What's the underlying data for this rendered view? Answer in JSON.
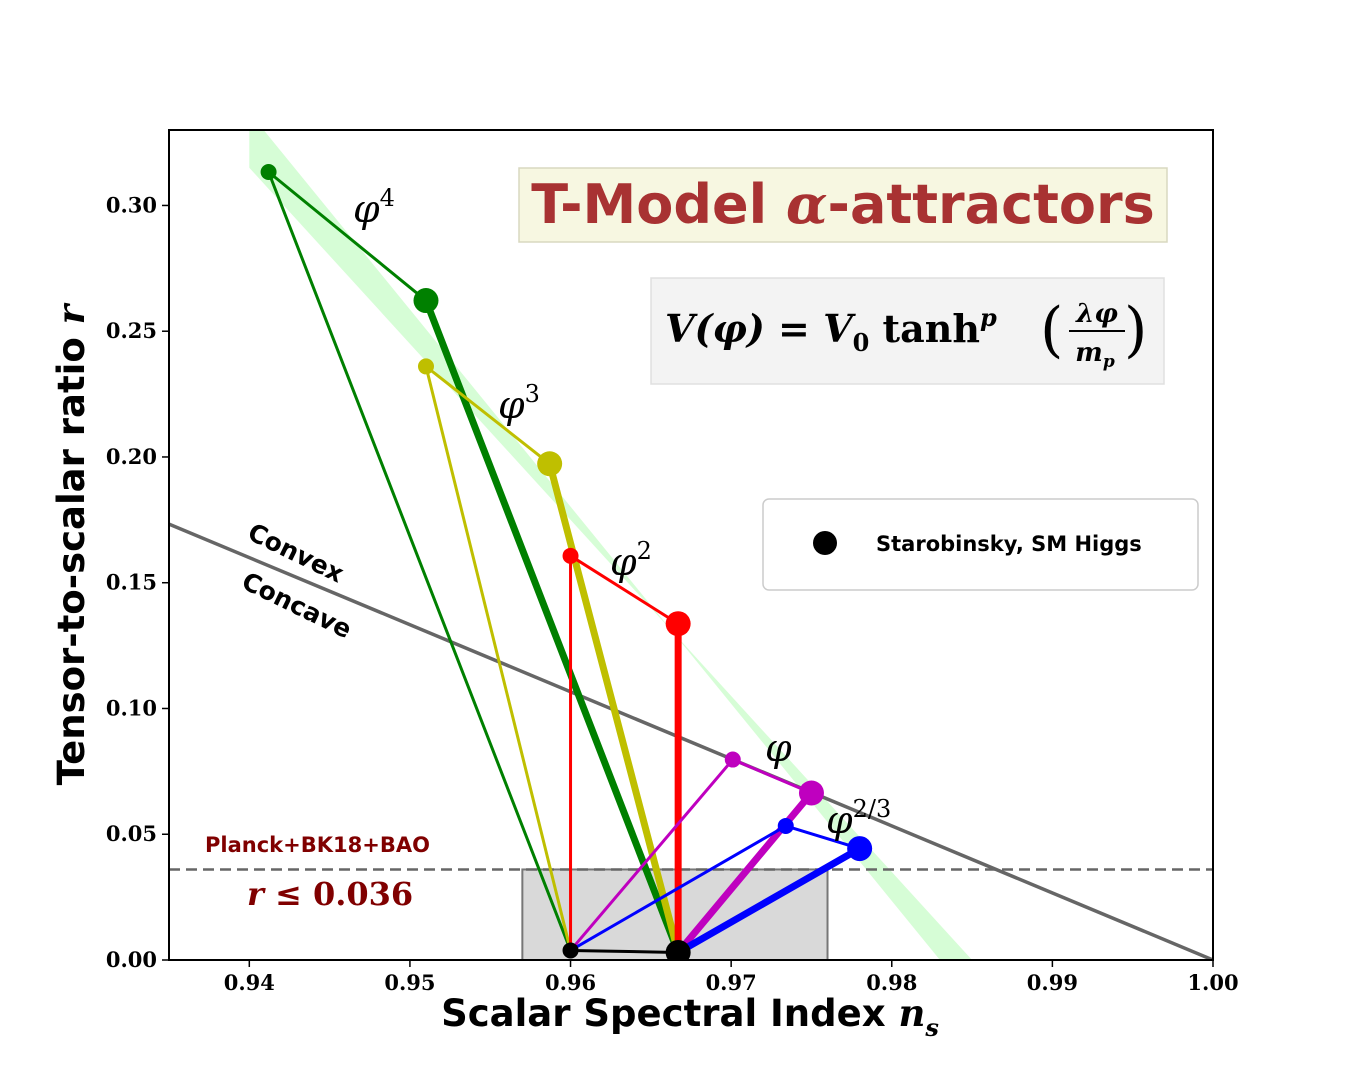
{
  "chart_data": {
    "type": "line",
    "title": "T-Model",
    "title_symbol": "α",
    "title_suffix": "-attractors",
    "formula": {
      "lhs": "V(φ) = V",
      "sub0": "0",
      "func": " tanh",
      "power": "p",
      "frac_num": "λφ",
      "frac_den": "m",
      "frac_den_sub": "p"
    },
    "xlabel": "Scalar Spectral Index",
    "xlabel_symbol": "n",
    "xlabel_sub": "s",
    "ylabel": "Tensor-to-scalar ratio",
    "ylabel_symbol": "r",
    "xlim": [
      0.935,
      1.0
    ],
    "ylim": [
      0.0,
      0.33
    ],
    "xticks": [
      0.94,
      0.95,
      0.96,
      0.97,
      0.98,
      0.99,
      1.0
    ],
    "xtick_labels": [
      "0.94",
      "0.95",
      "0.96",
      "0.97",
      "0.98",
      "0.99",
      "1.00"
    ],
    "yticks": [
      0.0,
      0.05,
      0.1,
      0.15,
      0.2,
      0.25,
      0.3
    ],
    "ytick_labels": [
      "0.00",
      "0.05",
      "0.10",
      "0.15",
      "0.20",
      "0.25",
      "0.30"
    ],
    "series": [
      {
        "name": "φ⁴",
        "base": "φ",
        "sup": "4",
        "color": "#008000",
        "thin_start": [
          0.9412,
          0.3133
        ],
        "thick_start": [
          0.951,
          0.2622
        ],
        "thin_end": [
          0.96,
          0.0038
        ],
        "thick_end": [
          0.9667,
          0.003
        ]
      },
      {
        "name": "φ³",
        "base": "φ",
        "sup": "3",
        "color": "#bfbf00",
        "thin_start": [
          0.951,
          0.236
        ],
        "thick_start": [
          0.9587,
          0.1973
        ],
        "thin_end": [
          0.96,
          0.0038
        ],
        "thick_end": [
          0.9667,
          0.003
        ]
      },
      {
        "name": "φ²",
        "base": "φ",
        "sup": "2",
        "color": "#ff0000",
        "thin_start": [
          0.96,
          0.1607
        ],
        "thick_start": [
          0.9667,
          0.1337
        ],
        "thin_end": [
          0.96,
          0.0038
        ],
        "thick_end": [
          0.9667,
          0.003
        ]
      },
      {
        "name": "φ",
        "base": "φ",
        "sup": "",
        "color": "#bf00bf",
        "thin_start": [
          0.9701,
          0.0797
        ],
        "thick_start": [
          0.975,
          0.0664
        ],
        "thin_end": [
          0.96,
          0.0038
        ],
        "thick_end": [
          0.9667,
          0.003
        ]
      },
      {
        "name": "φ^{2/3}",
        "base": "φ",
        "sup": "2/3",
        "color": "#0000ff",
        "thin_start": [
          0.9734,
          0.0533
        ],
        "thick_start": [
          0.978,
          0.0443
        ],
        "thin_end": [
          0.96,
          0.0038
        ],
        "thick_end": [
          0.9667,
          0.003
        ]
      }
    ],
    "starobinsky": {
      "label": "Starobinsky, SM Higgs",
      "color": "#000000",
      "points": [
        [
          0.96,
          0.0038
        ],
        [
          0.9667,
          0.003
        ]
      ]
    },
    "convex_boundary": {
      "x": [
        0.935,
        1.0
      ],
      "y": [
        0.1733,
        0.0
      ],
      "color": "#666666",
      "above_label": "Convex",
      "below_label": "Concave"
    },
    "green_band": {
      "color": "#98fb98",
      "upper": [
        [
          0.94,
          0.337
        ],
        [
          0.983,
          0.0
        ]
      ],
      "lower": [
        [
          0.94,
          0.315
        ],
        [
          0.985,
          0.0
        ]
      ]
    },
    "planck_region": {
      "x": [
        0.957,
        0.976
      ],
      "y": [
        0.0,
        0.036
      ],
      "fill": "#d9d9d9"
    },
    "r_bound": {
      "value": 0.036,
      "source": "Planck+BK18+BAO",
      "label_rel": " ≤ ",
      "label_val": "0.036"
    },
    "legend_position": "upper right"
  }
}
